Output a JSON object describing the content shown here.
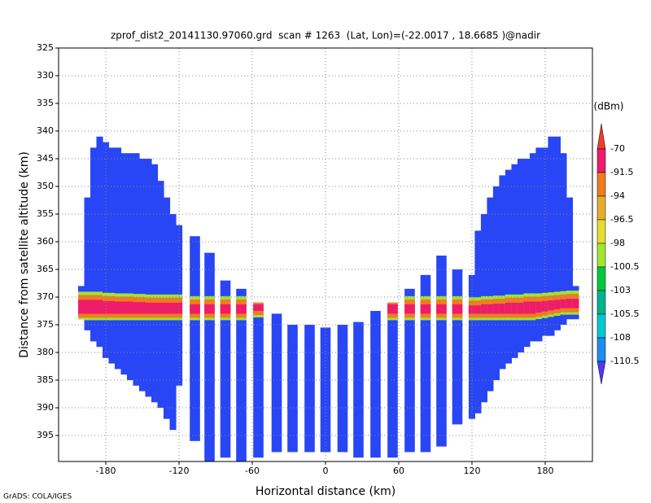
{
  "chart_data": {
    "type": "radar-profile",
    "title": "zprof_dist2_20141130.97060.grd  scan # 1263  (Lat, Lon)=(-22.0017 , 18.6685 )@nadir",
    "x_label": "Horizontal distance (km)",
    "y_label": "Distance from satellite altitude (km)",
    "footer": "GrADS: COLA/IGES",
    "xlim": [
      -218.7,
      218.7
    ],
    "ylim": [
      325,
      399.7
    ],
    "y_reversed": true,
    "xticks": [
      -180,
      -120,
      -60,
      0,
      60,
      120,
      180
    ],
    "yticks": [
      325,
      330,
      335,
      340,
      345,
      350,
      355,
      360,
      365,
      370,
      375,
      380,
      385,
      390,
      395
    ],
    "grid": true,
    "colorbar": {
      "units": "(dBm)",
      "levels": [
        -70,
        -91.5,
        -94,
        -96.5,
        -98,
        -100.5,
        -103,
        -105.5,
        -108,
        -110.5
      ],
      "colors": [
        "#f03c2c",
        "#ee1c6a",
        "#f07c22",
        "#e6ad2d",
        "#e6dc32",
        "#a0e632",
        "#00c83c",
        "#00b48c",
        "#00c8d2",
        "#1e8cf0",
        "#4a3cf0"
      ]
    },
    "field_color": "#2846f5",
    "columns": [
      {
        "x": -200,
        "width": 5,
        "top": 368,
        "bottom": 374,
        "band": [
          370.5,
          373
        ]
      },
      {
        "x": -195,
        "width": 5,
        "top": 352,
        "bottom": 376,
        "band": [
          370.5,
          373
        ]
      },
      {
        "x": -190,
        "width": 5,
        "top": 343,
        "bottom": 378,
        "band": [
          370.5,
          373
        ]
      },
      {
        "x": -185,
        "width": 5,
        "top": 341,
        "bottom": 379,
        "band": [
          370.5,
          373
        ]
      },
      {
        "x": -180,
        "width": 5,
        "top": 342,
        "bottom": 381,
        "band": [
          370.7,
          373
        ]
      },
      {
        "x": -175,
        "width": 5,
        "top": 343,
        "bottom": 382,
        "band": [
          370.7,
          373
        ]
      },
      {
        "x": -170,
        "width": 5,
        "top": 343,
        "bottom": 383,
        "band": [
          370.8,
          373
        ]
      },
      {
        "x": -165,
        "width": 5,
        "top": 344,
        "bottom": 384,
        "band": [
          370.8,
          373
        ]
      },
      {
        "x": -160,
        "width": 5,
        "top": 344,
        "bottom": 385,
        "band": [
          370.8,
          373
        ]
      },
      {
        "x": -155,
        "width": 5,
        "top": 344,
        "bottom": 386,
        "band": [
          370.9,
          373
        ]
      },
      {
        "x": -150,
        "width": 5,
        "top": 345,
        "bottom": 387,
        "band": [
          370.9,
          373
        ]
      },
      {
        "x": -145,
        "width": 5,
        "top": 345,
        "bottom": 388,
        "band": [
          371,
          373
        ]
      },
      {
        "x": -140,
        "width": 5,
        "top": 346,
        "bottom": 389,
        "band": [
          371,
          373
        ]
      },
      {
        "x": -135,
        "width": 5,
        "top": 349,
        "bottom": 390,
        "band": [
          371,
          373
        ]
      },
      {
        "x": -130,
        "width": 5,
        "top": 352,
        "bottom": 392,
        "band": [
          371,
          373
        ]
      },
      {
        "x": -125,
        "width": 5,
        "top": 355,
        "bottom": 394,
        "band": [
          371,
          373
        ]
      },
      {
        "x": -120,
        "width": 5,
        "top": 357,
        "bottom": 386,
        "band": [
          371,
          373
        ]
      },
      {
        "x": -107,
        "width": 8,
        "top": 359,
        "bottom": 396,
        "band": [
          371.3,
          373
        ]
      },
      {
        "x": -95,
        "width": 8,
        "top": 362,
        "bottom": 399.7,
        "band": [
          371.3,
          373
        ]
      },
      {
        "x": -82,
        "width": 8,
        "top": 367,
        "bottom": 399,
        "band": [
          371.3,
          373
        ]
      },
      {
        "x": -69,
        "width": 8,
        "top": 368.5,
        "bottom": 399.7,
        "band": [
          371.3,
          373
        ]
      },
      {
        "x": -55,
        "width": 8,
        "top": 371,
        "bottom": 399,
        "band": [
          371.3,
          372.5
        ]
      },
      {
        "x": -40,
        "width": 8,
        "top": 373,
        "bottom": 398,
        "band": null
      },
      {
        "x": -27,
        "width": 8,
        "top": 375,
        "bottom": 398,
        "band": null
      },
      {
        "x": -13,
        "width": 8,
        "top": 375,
        "bottom": 398,
        "band": null
      },
      {
        "x": 0,
        "width": 8,
        "top": 375.5,
        "bottom": 398,
        "band": null
      },
      {
        "x": 14,
        "width": 8,
        "top": 375,
        "bottom": 398,
        "band": null
      },
      {
        "x": 27,
        "width": 8,
        "top": 374.5,
        "bottom": 399,
        "band": null
      },
      {
        "x": 41,
        "width": 8,
        "top": 372.5,
        "bottom": 399,
        "band": null
      },
      {
        "x": 55,
        "width": 8,
        "top": 371,
        "bottom": 399,
        "band": [
          371.3,
          373
        ]
      },
      {
        "x": 69,
        "width": 8,
        "top": 368.5,
        "bottom": 398,
        "band": [
          371.3,
          373
        ]
      },
      {
        "x": 82,
        "width": 8,
        "top": 366,
        "bottom": 398,
        "band": [
          371.3,
          373
        ]
      },
      {
        "x": 95,
        "width": 8,
        "top": 362.5,
        "bottom": 397,
        "band": [
          371.3,
          373
        ]
      },
      {
        "x": 108,
        "width": 8,
        "top": 365,
        "bottom": 393,
        "band": [
          371.3,
          373
        ]
      },
      {
        "x": 120,
        "width": 5,
        "top": 366,
        "bottom": 392,
        "band": [
          371.5,
          373
        ]
      },
      {
        "x": 125,
        "width": 5,
        "top": 358,
        "bottom": 391,
        "band": [
          371.5,
          373
        ]
      },
      {
        "x": 130,
        "width": 5,
        "top": 355,
        "bottom": 389,
        "band": [
          371.3,
          373
        ]
      },
      {
        "x": 135,
        "width": 5,
        "top": 352,
        "bottom": 387,
        "band": [
          371.3,
          373
        ]
      },
      {
        "x": 140,
        "width": 5,
        "top": 350,
        "bottom": 385,
        "band": [
          371.2,
          373
        ]
      },
      {
        "x": 145,
        "width": 5,
        "top": 348,
        "bottom": 383,
        "band": [
          371.2,
          373
        ]
      },
      {
        "x": 150,
        "width": 5,
        "top": 347,
        "bottom": 382,
        "band": [
          371,
          373
        ]
      },
      {
        "x": 155,
        "width": 5,
        "top": 346,
        "bottom": 381,
        "band": [
          371,
          373
        ]
      },
      {
        "x": 160,
        "width": 5,
        "top": 345,
        "bottom": 380,
        "band": [
          371,
          373
        ]
      },
      {
        "x": 165,
        "width": 5,
        "top": 345,
        "bottom": 379,
        "band": [
          370.8,
          373
        ]
      },
      {
        "x": 170,
        "width": 5,
        "top": 344,
        "bottom": 378,
        "band": [
          370.8,
          373
        ]
      },
      {
        "x": 175,
        "width": 5,
        "top": 343,
        "bottom": 378,
        "band": [
          370.8,
          372.8
        ]
      },
      {
        "x": 180,
        "width": 5,
        "top": 343,
        "bottom": 377,
        "band": [
          370.7,
          372.6
        ]
      },
      {
        "x": 185,
        "width": 5,
        "top": 341,
        "bottom": 377,
        "band": [
          370.6,
          372.4
        ]
      },
      {
        "x": 190,
        "width": 5,
        "top": 341,
        "bottom": 376,
        "band": [
          370.5,
          372.2
        ]
      },
      {
        "x": 195,
        "width": 5,
        "top": 344,
        "bottom": 375,
        "band": [
          370.4,
          372
        ]
      },
      {
        "x": 200,
        "width": 5,
        "top": 352,
        "bottom": 374,
        "band": [
          370.3,
          372
        ]
      },
      {
        "x": 205,
        "width": 5,
        "top": 368,
        "bottom": 374,
        "band": [
          370.3,
          372
        ]
      }
    ]
  }
}
